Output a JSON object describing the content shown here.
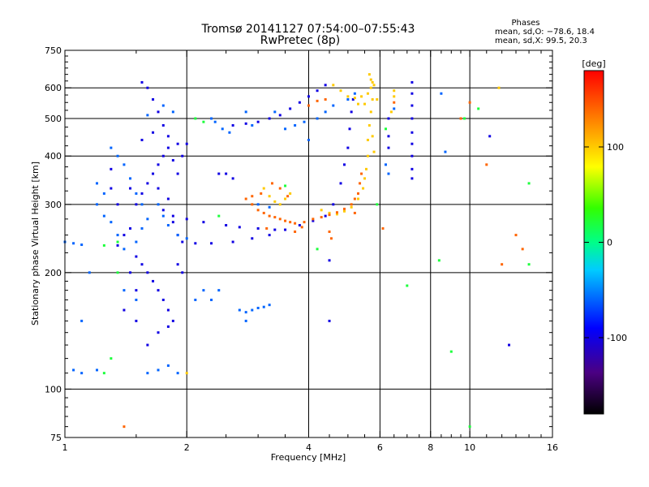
{
  "chart_data": {
    "type": "scatter",
    "title": "Tromsø 20141127 07:54:00–07:55:43",
    "subtitle": "RwPretec (8p)",
    "xlabel": "Frequency [MHz]",
    "ylabel": "Stationary phase Virtual Height [km]",
    "x_scale": "log",
    "y_scale": "log",
    "xlim": [
      1,
      16
    ],
    "ylim": [
      75,
      750
    ],
    "x_ticks": [
      1,
      2,
      4,
      6,
      8,
      10,
      16
    ],
    "x_tick_labels": [
      "1",
      "2",
      "4",
      "6",
      "8",
      "10",
      "16"
    ],
    "y_ticks": [
      75,
      100,
      200,
      300,
      400,
      500,
      600,
      750
    ],
    "y_tick_labels": [
      "75",
      "100",
      "200",
      "300",
      "400",
      "500",
      "600",
      "750"
    ],
    "x_minor_ticks": [
      1.5,
      2.5,
      3,
      3.5,
      4.5,
      5,
      5.5,
      6.5,
      7,
      7.5,
      8.5,
      9,
      9.5,
      11,
      12,
      13,
      14,
      15
    ],
    "y_minor_ticks": [
      80,
      85,
      90,
      95,
      110,
      120,
      130,
      140,
      150,
      160,
      170,
      180,
      190,
      225,
      250,
      275,
      325,
      350,
      375,
      425,
      450,
      475,
      525,
      550,
      575,
      625,
      650,
      675,
      700,
      725
    ],
    "grid": true,
    "vertical_grid_at": [
      2,
      4,
      6,
      8,
      10
    ],
    "horizontal_grid_at": [
      100,
      200,
      300,
      400,
      500,
      600
    ],
    "annotation": {
      "heading": "Phases",
      "line1": "mean, sd,O: −78.6, 18.4",
      "line2": "mean, sd,X:  99.5, 20.3"
    },
    "colorbar": {
      "label": "[deg]",
      "range": [
        -180,
        180
      ],
      "ticks": [
        100,
        0,
        -100
      ],
      "tick_labels": [
        "100",
        "0",
        "-100"
      ]
    },
    "series": [
      {
        "phase": -100,
        "points": [
          [
            1.35,
            235
          ],
          [
            1.4,
            250
          ],
          [
            1.45,
            260
          ],
          [
            1.5,
            300
          ],
          [
            1.55,
            320
          ],
          [
            1.6,
            340
          ],
          [
            1.65,
            360
          ],
          [
            1.7,
            380
          ],
          [
            1.75,
            400
          ],
          [
            1.8,
            420
          ],
          [
            1.85,
            390
          ],
          [
            1.9,
            360
          ],
          [
            1.5,
            220
          ],
          [
            1.55,
            210
          ],
          [
            1.6,
            200
          ],
          [
            1.65,
            190
          ],
          [
            1.7,
            180
          ],
          [
            1.75,
            170
          ],
          [
            1.8,
            160
          ],
          [
            1.85,
            150
          ],
          [
            1.6,
            130
          ],
          [
            1.7,
            140
          ],
          [
            1.8,
            145
          ],
          [
            1.5,
            180
          ],
          [
            1.45,
            200
          ],
          [
            1.55,
            620
          ],
          [
            1.6,
            600
          ],
          [
            1.65,
            560
          ],
          [
            1.7,
            520
          ],
          [
            1.75,
            480
          ],
          [
            1.8,
            450
          ],
          [
            1.9,
            430
          ],
          [
            1.95,
            400
          ],
          [
            1.9,
            250
          ],
          [
            1.95,
            240
          ],
          [
            2.1,
            238
          ],
          [
            2.3,
            238
          ],
          [
            2.6,
            240
          ],
          [
            2.9,
            245
          ],
          [
            3.2,
            250
          ],
          [
            3.5,
            258
          ],
          [
            3.8,
            265
          ],
          [
            4.1,
            272
          ],
          [
            4.4,
            280
          ],
          [
            4.6,
            300
          ],
          [
            4.8,
            340
          ],
          [
            4.9,
            380
          ],
          [
            5.0,
            420
          ],
          [
            5.05,
            470
          ],
          [
            5.1,
            520
          ],
          [
            5.15,
            560
          ],
          [
            2.6,
            480
          ],
          [
            2.8,
            485
          ],
          [
            3.0,
            490
          ],
          [
            3.2,
            500
          ],
          [
            3.4,
            510
          ],
          [
            3.6,
            530
          ],
          [
            3.8,
            550
          ],
          [
            4.0,
            570
          ],
          [
            4.2,
            590
          ],
          [
            4.4,
            610
          ],
          [
            2.4,
            360
          ],
          [
            2.5,
            360
          ],
          [
            2.6,
            350
          ],
          [
            1.75,
            290
          ],
          [
            1.85,
            280
          ],
          [
            2.0,
            275
          ],
          [
            2.2,
            270
          ],
          [
            2.5,
            265
          ],
          [
            2.7,
            262
          ],
          [
            3.0,
            260
          ],
          [
            3.3,
            258
          ],
          [
            4.5,
            215
          ],
          [
            4.5,
            150
          ],
          [
            6.3,
            500
          ],
          [
            6.3,
            450
          ],
          [
            6.3,
            420
          ],
          [
            7.2,
            620
          ],
          [
            7.2,
            580
          ],
          [
            7.2,
            540
          ],
          [
            7.2,
            500
          ],
          [
            7.2,
            460
          ],
          [
            7.2,
            430
          ],
          [
            7.2,
            400
          ],
          [
            7.2,
            370
          ],
          [
            7.2,
            350
          ],
          [
            11.2,
            450
          ],
          [
            12.5,
            130
          ],
          [
            2.0,
            430
          ],
          [
            1.3,
            370
          ],
          [
            1.3,
            330
          ],
          [
            1.35,
            300
          ],
          [
            1.45,
            330
          ],
          [
            1.55,
            440
          ],
          [
            1.65,
            460
          ],
          [
            1.7,
            330
          ],
          [
            1.8,
            310
          ],
          [
            1.85,
            270
          ],
          [
            1.9,
            210
          ],
          [
            1.95,
            200
          ],
          [
            1.4,
            160
          ],
          [
            1.5,
            150
          ]
        ]
      },
      {
        "phase": -60,
        "points": [
          [
            1.3,
            420
          ],
          [
            1.35,
            400
          ],
          [
            1.4,
            380
          ],
          [
            1.45,
            350
          ],
          [
            1.5,
            320
          ],
          [
            1.55,
            300
          ],
          [
            1.3,
            270
          ],
          [
            1.35,
            250
          ],
          [
            1.4,
            230
          ],
          [
            1.5,
            240
          ],
          [
            1.55,
            260
          ],
          [
            1.6,
            275
          ],
          [
            1.7,
            300
          ],
          [
            1.75,
            280
          ],
          [
            1.8,
            265
          ],
          [
            1.9,
            250
          ],
          [
            2.0,
            245
          ],
          [
            1.0,
            240
          ],
          [
            1.05,
            238
          ],
          [
            1.1,
            236
          ],
          [
            2.3,
            500
          ],
          [
            2.35,
            490
          ],
          [
            2.45,
            470
          ],
          [
            2.55,
            460
          ],
          [
            3.5,
            470
          ],
          [
            3.7,
            480
          ],
          [
            3.9,
            490
          ],
          [
            4.2,
            500
          ],
          [
            4.4,
            520
          ],
          [
            4.6,
            540
          ],
          [
            5.0,
            560
          ],
          [
            5.2,
            580
          ],
          [
            2.7,
            160
          ],
          [
            2.8,
            158
          ],
          [
            2.9,
            160
          ],
          [
            3.0,
            162
          ],
          [
            3.1,
            163
          ],
          [
            3.2,
            165
          ],
          [
            2.8,
            150
          ],
          [
            1.6,
            110
          ],
          [
            1.7,
            112
          ],
          [
            1.8,
            115
          ],
          [
            1.05,
            112
          ],
          [
            1.1,
            110
          ],
          [
            1.2,
            112
          ],
          [
            1.4,
            180
          ],
          [
            1.5,
            170
          ],
          [
            2.2,
            180
          ],
          [
            2.3,
            170
          ],
          [
            1.2,
            340
          ],
          [
            1.25,
            320
          ],
          [
            1.2,
            300
          ],
          [
            1.25,
            280
          ],
          [
            2.4,
            180
          ],
          [
            3.0,
            300
          ],
          [
            3.2,
            295
          ],
          [
            6.2,
            380
          ],
          [
            6.3,
            360
          ],
          [
            6.5,
            530
          ],
          [
            8.5,
            580
          ],
          [
            8.7,
            410
          ],
          [
            1.15,
            200
          ],
          [
            1.1,
            150
          ],
          [
            1.9,
            110
          ],
          [
            2.1,
            170
          ],
          [
            4.0,
            440
          ],
          [
            1.75,
            540
          ],
          [
            1.85,
            520
          ],
          [
            1.6,
            510
          ],
          [
            3.3,
            520
          ],
          [
            2.8,
            520
          ],
          [
            2.9,
            480
          ]
        ]
      },
      {
        "phase": 100,
        "points": [
          [
            4.6,
            610
          ],
          [
            4.8,
            590
          ],
          [
            5.0,
            570
          ],
          [
            5.2,
            565
          ],
          [
            5.4,
            570
          ],
          [
            5.6,
            580
          ],
          [
            5.7,
            600
          ],
          [
            5.75,
            620
          ],
          [
            5.75,
            560
          ],
          [
            5.7,
            520
          ],
          [
            5.65,
            480
          ],
          [
            5.6,
            440
          ],
          [
            5.6,
            400
          ],
          [
            5.55,
            370
          ],
          [
            5.5,
            350
          ],
          [
            5.45,
            330
          ],
          [
            5.3,
            310
          ],
          [
            5.1,
            295
          ],
          [
            4.9,
            288
          ],
          [
            4.7,
            283
          ],
          [
            3.1,
            330
          ],
          [
            3.2,
            315
          ],
          [
            3.3,
            305
          ],
          [
            3.4,
            300
          ],
          [
            3.5,
            310
          ],
          [
            3.6,
            320
          ],
          [
            4.3,
            290
          ],
          [
            4.5,
            285
          ],
          [
            5.65,
            650
          ],
          [
            5.7,
            630
          ],
          [
            5.8,
            610
          ],
          [
            5.75,
            450
          ],
          [
            5.8,
            410
          ],
          [
            6.5,
            570
          ],
          [
            6.5,
            590
          ],
          [
            11.8,
            600
          ],
          [
            2.0,
            110
          ],
          [
            6.4,
            520
          ],
          [
            5.9,
            560
          ],
          [
            5.5,
            545
          ],
          [
            5.3,
            545
          ]
        ]
      },
      {
        "phase": 140,
        "points": [
          [
            2.9,
            300
          ],
          [
            3.0,
            290
          ],
          [
            3.1,
            285
          ],
          [
            3.2,
            280
          ],
          [
            3.3,
            278
          ],
          [
            3.4,
            275
          ],
          [
            3.5,
            272
          ],
          [
            3.6,
            270
          ],
          [
            3.7,
            268
          ],
          [
            3.9,
            270
          ],
          [
            4.1,
            275
          ],
          [
            4.3,
            278
          ],
          [
            4.5,
            282
          ],
          [
            4.7,
            286
          ],
          [
            4.9,
            292
          ],
          [
            5.1,
            300
          ],
          [
            5.2,
            310
          ],
          [
            5.3,
            320
          ],
          [
            5.35,
            340
          ],
          [
            5.4,
            360
          ],
          [
            3.25,
            340
          ],
          [
            3.4,
            330
          ],
          [
            3.55,
            315
          ],
          [
            2.8,
            310
          ],
          [
            2.9,
            315
          ],
          [
            3.05,
            320
          ],
          [
            4.0,
            540
          ],
          [
            4.2,
            555
          ],
          [
            4.4,
            560
          ],
          [
            10.0,
            550
          ],
          [
            11.0,
            380
          ],
          [
            12.0,
            210
          ],
          [
            13.5,
            230
          ],
          [
            9.5,
            500
          ],
          [
            6.1,
            260
          ],
          [
            4.5,
            255
          ],
          [
            4.55,
            245
          ],
          [
            3.15,
            260
          ],
          [
            1.4,
            80
          ],
          [
            13.0,
            250
          ],
          [
            3.7,
            255
          ],
          [
            3.85,
            262
          ],
          [
            6.5,
            550
          ],
          [
            5.2,
            285
          ]
        ]
      },
      {
        "phase": 20,
        "points": [
          [
            1.35,
            240
          ],
          [
            1.25,
            235
          ],
          [
            1.35,
            200
          ],
          [
            2.1,
            500
          ],
          [
            2.2,
            490
          ],
          [
            1.3,
            120
          ],
          [
            1.25,
            110
          ],
          [
            10.0,
            80
          ],
          [
            8.4,
            215
          ],
          [
            9.0,
            125
          ],
          [
            7.0,
            185
          ],
          [
            5.9,
            300
          ],
          [
            9.7,
            500
          ],
          [
            6.2,
            470
          ],
          [
            4.2,
            230
          ],
          [
            14.0,
            210
          ],
          [
            14.0,
            340
          ],
          [
            10.5,
            530
          ],
          [
            3.5,
            335
          ],
          [
            2.4,
            280
          ]
        ]
      }
    ]
  }
}
